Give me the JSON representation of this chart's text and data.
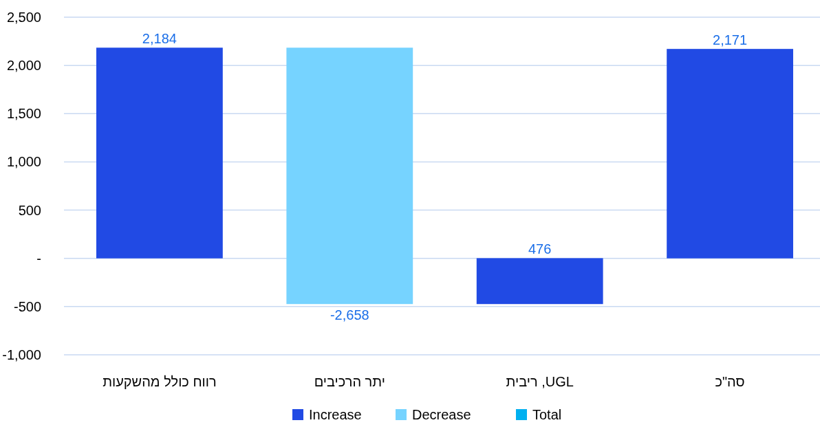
{
  "chart_data": {
    "type": "bar",
    "categories": [
      "רווח כולל מהשקעות",
      "יתר הרכיבים",
      "ריבית ,UGL",
      "סה\"כ"
    ],
    "series": [
      {
        "name": "Increase",
        "color": "#214ae4",
        "values": [
          2184,
          null,
          476,
          2171
        ],
        "base": [
          0,
          null,
          -474,
          0
        ],
        "value_labels": [
          "2,184",
          null,
          "476",
          "2,171"
        ]
      },
      {
        "name": "Decrease",
        "color": "#76d3ff",
        "values": [
          null,
          -2658,
          null,
          null
        ],
        "base": [
          null,
          2184,
          null,
          null
        ],
        "value_labels": [
          null,
          "-2,658",
          null,
          null
        ]
      },
      {
        "name": "Total",
        "color": "#00b0f0",
        "values": [
          null,
          null,
          null,
          null
        ]
      }
    ],
    "ylim": [
      -1000,
      2500
    ],
    "yticks": [
      {
        "value": -1000,
        "label": "-1,000"
      },
      {
        "value": -500,
        "label": "-500"
      },
      {
        "value": 0,
        "label": "-"
      },
      500,
      {
        "value": 1000,
        "label": "1,000"
      },
      {
        "value": 1500,
        "label": "1,500"
      },
      {
        "value": 2000,
        "label": "2,000"
      },
      {
        "value": 2500,
        "label": "2,500"
      }
    ],
    "grid": "y",
    "legend": "bottom"
  }
}
